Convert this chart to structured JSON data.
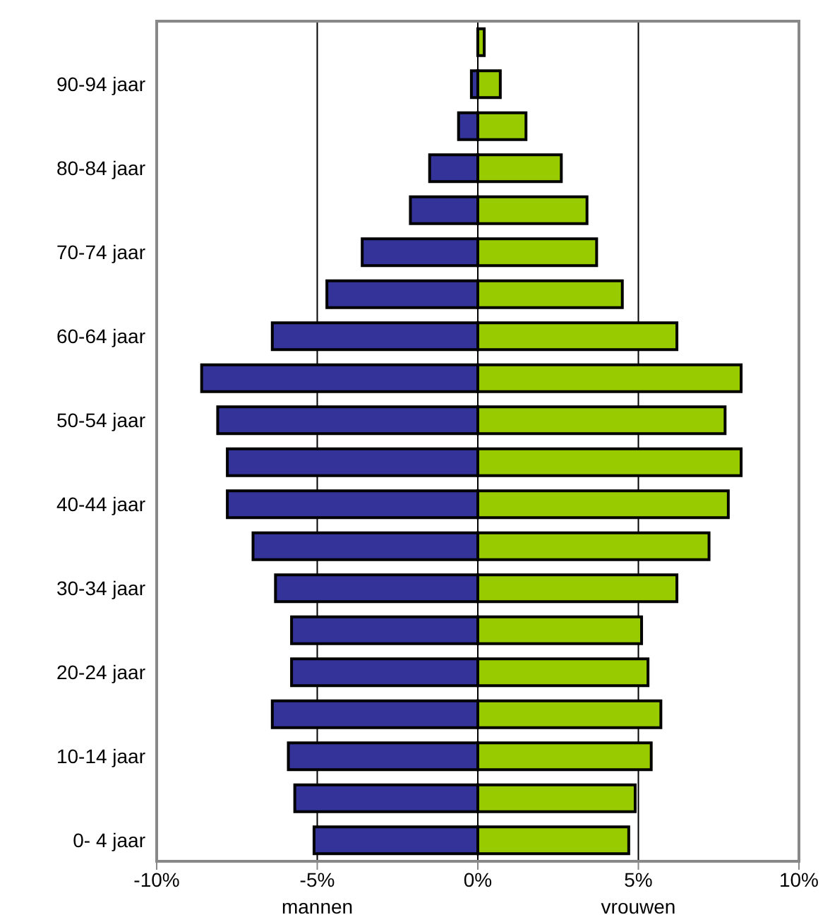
{
  "chart_data": {
    "type": "bar",
    "orientation": "horizontal",
    "stacked": true,
    "categories": [
      null,
      "90-94 jaar",
      null,
      "80-84 jaar",
      null,
      "70-74 jaar",
      null,
      "60-64 jaar",
      null,
      "50-54 jaar",
      null,
      "40-44 jaar",
      null,
      "30-34 jaar",
      null,
      "20-24 jaar",
      null,
      "10-14 jaar",
      null,
      "0- 4 jaar"
    ],
    "series": [
      {
        "name": "mannen",
        "color": "#333399",
        "values": [
          0,
          -0.2,
          -0.6,
          -1.5,
          -2.1,
          -3.6,
          -4.7,
          -6.4,
          -8.6,
          -8.1,
          -7.8,
          -7.8,
          -7.0,
          -6.3,
          -5.8,
          -5.8,
          -6.4,
          -5.9,
          -5.7,
          -5.1
        ]
      },
      {
        "name": "vrouwen",
        "color": "#99cc00",
        "values": [
          0.2,
          0.7,
          1.5,
          2.6,
          3.4,
          3.7,
          4.5,
          6.2,
          8.2,
          7.7,
          8.2,
          7.8,
          7.2,
          6.2,
          5.1,
          5.3,
          5.7,
          5.4,
          4.9,
          4.7
        ]
      }
    ],
    "xlim": [
      -10,
      10
    ],
    "xticks": [
      {
        "value": -10,
        "label": "-10%"
      },
      {
        "value": -5,
        "label": "-5%"
      },
      {
        "value": 0,
        "label": "0%"
      },
      {
        "value": 5,
        "label": "5%"
      },
      {
        "value": 10,
        "label": "10%"
      }
    ],
    "grid": "x",
    "legend": false
  }
}
